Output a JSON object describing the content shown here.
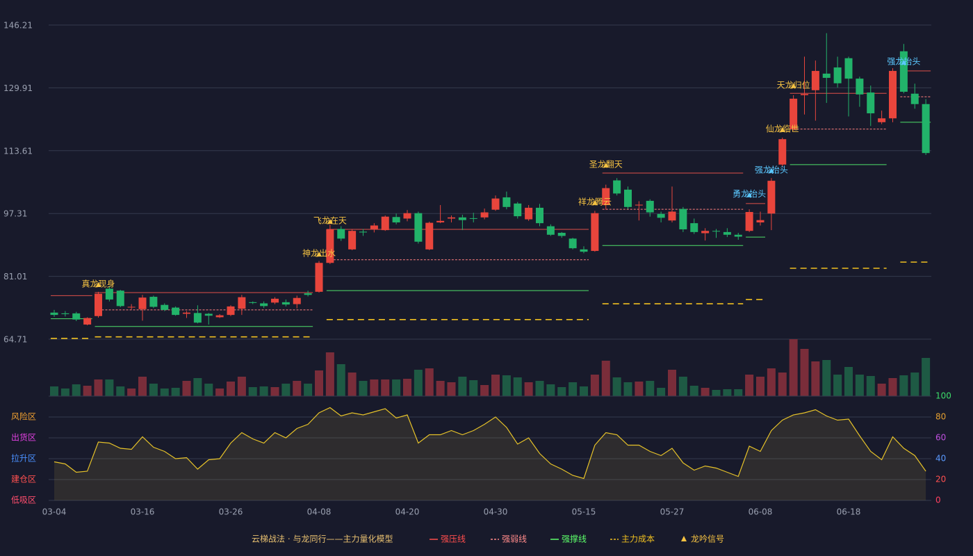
{
  "chart_data": [
    {
      "type": "candlestick",
      "categories": [
        "03-04",
        null,
        null,
        null,
        null,
        null,
        null,
        null,
        "03-16",
        null,
        null,
        null,
        null,
        null,
        null,
        null,
        "03-26",
        null,
        null,
        null,
        null,
        null,
        null,
        null,
        "04-08",
        null,
        null,
        null,
        null,
        null,
        null,
        null,
        "04-20",
        null,
        null,
        null,
        null,
        null,
        null,
        null,
        "04-30",
        null,
        null,
        null,
        null,
        null,
        null,
        null,
        "05-15",
        null,
        null,
        null,
        null,
        null,
        null,
        null,
        "05-27",
        null,
        null,
        null,
        null,
        null,
        null,
        null,
        "06-08",
        null,
        null,
        null,
        null,
        null,
        null,
        null,
        "06-18",
        null,
        null,
        null,
        null,
        null,
        null,
        null
      ],
      "open": [
        71.6,
        71.4,
        71.4,
        68.5,
        70.7,
        77.8,
        77.3,
        73.0,
        72.5,
        75.7,
        73.6,
        72.9,
        71.3,
        71.5,
        71.3,
        70.4,
        71.0,
        72.6,
        74.3,
        74.0,
        74.2,
        74.3,
        73.8,
        76.6,
        77.0,
        84.5,
        93.3,
        88.0,
        92.6,
        93.3,
        93.0,
        96.4,
        96.0,
        97.4,
        88.0,
        95.0,
        96.0,
        96.3,
        96.1,
        96.3,
        98.3,
        101.5,
        99.9,
        95.8,
        98.8,
        94.0,
        92.3,
        90.8,
        88.0,
        87.6,
        99.5,
        105.9,
        103.5,
        99.4,
        100.6,
        97.2,
        95.5,
        98.5,
        94.8,
        92.2,
        92.8,
        92.5,
        91.8,
        92.8,
        95.0,
        97.3,
        110.0,
        119.2,
        128.0,
        129.3,
        133.6,
        135.2,
        137.6,
        132.3,
        128.7,
        121.0,
        122.0,
        139.4,
        128.4,
        125.7
      ],
      "high": [
        72.3,
        72.0,
        71.8,
        70.4,
        77.0,
        78.5,
        77.5,
        73.8,
        76.2,
        76.0,
        74.0,
        73.2,
        72.0,
        73.5,
        71.5,
        71.2,
        73.5,
        76.2,
        74.5,
        74.5,
        75.6,
        75.0,
        76.0,
        77.3,
        85.0,
        94.5,
        94.0,
        93.3,
        93.3,
        94.8,
        96.8,
        97.3,
        98.2,
        97.8,
        95.2,
        99.5,
        96.8,
        97.0,
        97.5,
        98.6,
        102.0,
        103.0,
        100.3,
        99.5,
        99.8,
        94.5,
        92.5,
        91.0,
        88.8,
        98.0,
        104.8,
        106.5,
        104.3,
        100.5,
        101.0,
        97.8,
        104.3,
        99.0,
        96.0,
        93.5,
        93.3,
        93.5,
        92.3,
        98.4,
        97.8,
        106.5,
        117.0,
        128.0,
        138.0,
        137.0,
        144.1,
        138.0,
        138.0,
        132.8,
        130.5,
        124.0,
        135.0,
        141.3,
        131.0,
        127.0
      ],
      "low": [
        70.5,
        70.6,
        69.4,
        68.3,
        70.3,
        74.5,
        73.0,
        72.4,
        69.5,
        72.8,
        72.0,
        70.8,
        70.2,
        68.8,
        68.5,
        70.2,
        70.7,
        71.0,
        73.8,
        72.8,
        73.8,
        73.2,
        72.7,
        75.8,
        76.8,
        84.2,
        90.2,
        87.8,
        91.5,
        92.4,
        92.8,
        94.5,
        95.3,
        89.5,
        87.8,
        94.8,
        95.0,
        93.0,
        95.0,
        95.8,
        98.0,
        98.4,
        96.0,
        95.4,
        94.0,
        91.5,
        91.0,
        88.0,
        87.0,
        87.4,
        98.3,
        102.0,
        98.5,
        95.5,
        96.5,
        95.0,
        95.0,
        92.5,
        92.0,
        90.3,
        91.0,
        91.2,
        90.5,
        92.5,
        94.2,
        93.0,
        109.5,
        118.8,
        123.0,
        121.4,
        126.0,
        130.0,
        122.5,
        125.0,
        120.0,
        120.5,
        121.0,
        128.5,
        124.5,
        112.5
      ],
      "close": [
        71.0,
        71.2,
        69.8,
        70.2,
        76.5,
        75.0,
        73.3,
        73.1,
        75.5,
        73.1,
        72.3,
        71.0,
        71.6,
        69.0,
        70.8,
        70.9,
        73.2,
        75.6,
        74.1,
        73.3,
        75.2,
        73.7,
        75.4,
        76.2,
        84.5,
        93.2,
        90.8,
        92.8,
        92.4,
        94.2,
        96.5,
        95.0,
        97.4,
        90.0,
        94.9,
        95.4,
        96.3,
        95.6,
        96.0,
        97.6,
        101.2,
        99.0,
        96.6,
        98.8,
        94.8,
        91.8,
        91.5,
        88.3,
        87.4,
        97.4,
        103.9,
        102.5,
        99.0,
        99.6,
        97.6,
        96.2,
        97.8,
        93.2,
        92.5,
        92.8,
        92.7,
        91.8,
        91.3,
        97.7,
        95.6,
        105.8,
        116.6,
        127.1,
        128.3,
        134.3,
        132.5,
        131.1,
        132.3,
        128.2,
        123.3,
        122.0,
        134.3,
        128.9,
        125.7,
        113.0
      ],
      "ylim": [
        64.71,
        146.21
      ],
      "yticks": [
        146.21,
        129.91,
        113.61,
        97.31,
        81.01,
        64.71
      ],
      "grid": true,
      "up_color": "#e8453c",
      "down_color": "#22b36a",
      "levels": [
        {
          "start": 0,
          "end": 3,
          "resistance": 76.0,
          "support": 70.0,
          "cost": 64.9
        },
        {
          "start": 4,
          "end": 23,
          "resistance": 76.8,
          "pivot": 72.3,
          "support": 68.0,
          "cost": 65.3
        },
        {
          "start": 25,
          "end": 48,
          "resistance": 93.2,
          "pivot": 85.3,
          "support": 77.3,
          "cost": 69.8
        },
        {
          "start": 50,
          "end": 62,
          "resistance": 107.8,
          "pivot": 98.4,
          "support": 89.0,
          "cost": 73.9
        },
        {
          "start": 63,
          "end": 64,
          "resistance": 99.9,
          "support": 91.2,
          "cost": 75.0
        },
        {
          "start": 67,
          "end": 75,
          "resistance": 128.5,
          "pivot": 119.2,
          "support": 110.0,
          "cost": 83.1
        },
        {
          "start": 77,
          "end": 79,
          "resistance": 134.3,
          "pivot": 127.6,
          "support": 121.0,
          "cost": 84.7
        }
      ],
      "signals": [
        {
          "text": "真龙现身",
          "index": 4,
          "price": 78.6,
          "color": "#f5c242"
        },
        {
          "text": "神龙出水",
          "index": 24,
          "price": 86.5,
          "color": "#f5c242"
        },
        {
          "text": "飞龙在天",
          "index": 25,
          "price": 95.0,
          "color": "#f5c242"
        },
        {
          "text": "祥龙腾云",
          "index": 49,
          "price": 99.9,
          "color": "#f5c242"
        },
        {
          "text": "圣龙翻天",
          "index": 50,
          "price": 109.6,
          "color": "#f5c242"
        },
        {
          "text": "勇龙抬头",
          "index": 63,
          "price": 101.9,
          "color": "#5bc8ff"
        },
        {
          "text": "强龙抬头",
          "index": 65,
          "price": 108.2,
          "color": "#5bc8ff"
        },
        {
          "text": "仙龙临世",
          "index": 66,
          "price": 118.8,
          "color": "#f5c242"
        },
        {
          "text": "天龙归位",
          "index": 67,
          "price": 130.2,
          "color": "#f5c242"
        },
        {
          "text": "强龙抬头",
          "index": 77,
          "price": 136.3,
          "color": "#5bc8ff"
        }
      ]
    },
    {
      "type": "volume",
      "values": [
        14,
        11,
        17,
        15,
        24,
        24,
        14,
        11,
        28,
        18,
        11,
        12,
        22,
        26,
        18,
        11,
        21,
        28,
        13,
        14,
        13,
        18,
        22,
        18,
        37,
        63,
        46,
        34,
        22,
        24,
        24,
        24,
        25,
        38,
        40,
        22,
        20,
        28,
        23,
        16,
        31,
        30,
        27,
        20,
        22,
        17,
        13,
        20,
        14,
        31,
        51,
        27,
        20,
        21,
        22,
        12,
        38,
        28,
        15,
        12,
        9,
        10,
        10,
        31,
        28,
        40,
        34,
        82,
        68,
        50,
        52,
        31,
        42,
        31,
        29,
        18,
        26,
        30,
        34,
        55
      ],
      "up_color": "#7a2d3a",
      "down_color": "#1e5a44"
    },
    {
      "type": "area",
      "values": [
        37,
        35,
        27,
        28,
        56,
        55,
        50,
        49,
        61,
        51,
        47,
        40,
        41,
        30,
        39,
        40,
        55,
        65,
        59,
        55,
        65,
        60,
        69,
        73,
        84,
        89,
        81,
        84,
        82,
        85,
        88,
        79,
        82,
        55,
        63,
        63,
        67,
        63,
        67,
        73,
        80,
        70,
        54,
        60,
        45,
        35,
        30,
        24,
        21,
        53,
        65,
        63,
        53,
        53,
        47,
        43,
        50,
        36,
        29,
        33,
        31,
        27,
        23,
        52,
        47,
        67,
        77,
        82,
        84,
        87,
        81,
        77,
        78,
        62,
        47,
        39,
        61,
        50,
        43,
        28
      ],
      "color": "#e6c229",
      "ylim": [
        0,
        100
      ],
      "yticks": [
        100,
        80,
        60,
        40,
        20,
        0
      ],
      "ytick_colors": [
        "#3ddc6a",
        "#e6a030",
        "#c050e0",
        "#5a9aff",
        "#ff5050",
        "#ff4060"
      ],
      "zones": [
        {
          "label": "风险区",
          "value": 80,
          "color": "#f0a030"
        },
        {
          "label": "出货区",
          "value": 60,
          "color": "#e040e0"
        },
        {
          "label": "拉升区",
          "value": 40,
          "color": "#4a90ff"
        },
        {
          "label": "建仓区",
          "value": 20,
          "color": "#ff5050"
        },
        {
          "label": "低吸区",
          "value": 0,
          "color": "#ff4d6d"
        }
      ]
    }
  ],
  "legend": {
    "title": "云梯战法 · 与龙同行——主力量化模型",
    "title_color": "#e8c070",
    "items": [
      {
        "name": "强压线",
        "color": "#ff4d4d",
        "style": "solid"
      },
      {
        "name": "强弱线",
        "color": "#ff8a8a",
        "style": "dashed"
      },
      {
        "name": "强撑线",
        "color": "#5cff6a",
        "style": "solid"
      },
      {
        "name": "主力成本",
        "color": "#f0c020",
        "style": "dashed"
      },
      {
        "name": "龙吟信号",
        "color": "#f5c242",
        "style": "triangle"
      }
    ]
  }
}
